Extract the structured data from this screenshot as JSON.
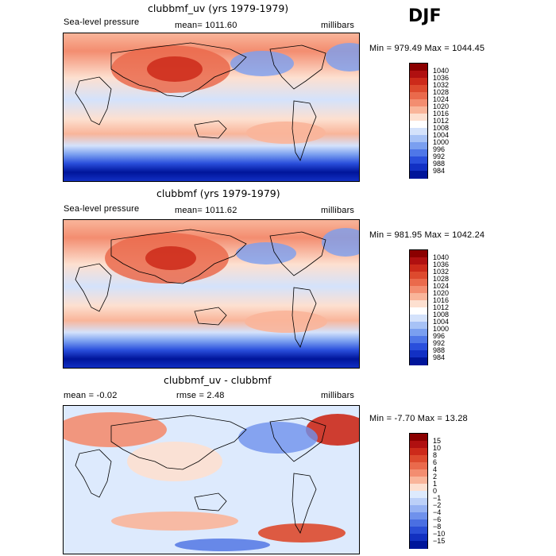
{
  "season": "DJF",
  "panels": [
    {
      "title": "clubbmf_uv (yrs 1979-1979)",
      "variable": "Sea-level pressure",
      "stat_left": "mean= 1011.60",
      "units": "millibars",
      "minmax": "Min = 979.49 Max = 1044.45",
      "colorbar": {
        "labels": [
          "1040",
          "1036",
          "1032",
          "1028",
          "1024",
          "1020",
          "1016",
          "1012",
          "1008",
          "1004",
          "1000",
          "996",
          "992",
          "988",
          "984"
        ],
        "colors": [
          "#8b0000",
          "#b01010",
          "#cc2a1a",
          "#dd4a2e",
          "#ea6a4c",
          "#f38d70",
          "#f9b59a",
          "#fde0d0",
          "#ffffff",
          "#d4e2fb",
          "#a7c2f6",
          "#7a9ff0",
          "#4f77e8",
          "#2a4fdc",
          "#1230c4",
          "#00159a"
        ]
      }
    },
    {
      "title": "clubbmf (yrs 1979-1979)",
      "variable": "Sea-level pressure",
      "stat_left": "mean= 1011.62",
      "units": "millibars",
      "minmax": "Min = 981.95 Max = 1042.24",
      "colorbar": {
        "labels": [
          "1040",
          "1036",
          "1032",
          "1028",
          "1024",
          "1020",
          "1016",
          "1012",
          "1008",
          "1004",
          "1000",
          "996",
          "992",
          "988",
          "984"
        ],
        "colors": [
          "#8b0000",
          "#b01010",
          "#cc2a1a",
          "#dd4a2e",
          "#ea6a4c",
          "#f38d70",
          "#f9b59a",
          "#fde0d0",
          "#ffffff",
          "#d4e2fb",
          "#a7c2f6",
          "#7a9ff0",
          "#4f77e8",
          "#2a4fdc",
          "#1230c4",
          "#00159a"
        ]
      }
    },
    {
      "title": "clubbmf_uv - clubbmf",
      "stat_left": "mean =   -0.02",
      "stat_mid": "rmse =    2.48",
      "units": "millibars",
      "minmax": "Min =  -7.70 Max =  13.28",
      "colorbar": {
        "labels": [
          "15",
          "10",
          "8",
          "6",
          "4",
          "2",
          "1",
          "0",
          "−1",
          "−2",
          "−4",
          "−6",
          "−8",
          "−10",
          "−15"
        ],
        "colors": [
          "#8b0000",
          "#b01010",
          "#cc2a1a",
          "#dd4a2e",
          "#ea6a4c",
          "#f38d70",
          "#f9b59a",
          "#fde0d0",
          "#ddeafd",
          "#bcd0f8",
          "#96b2f3",
          "#6f91ec",
          "#4a6fe2",
          "#2a4ed6",
          "#1230c0",
          "#00159a"
        ]
      }
    }
  ]
}
